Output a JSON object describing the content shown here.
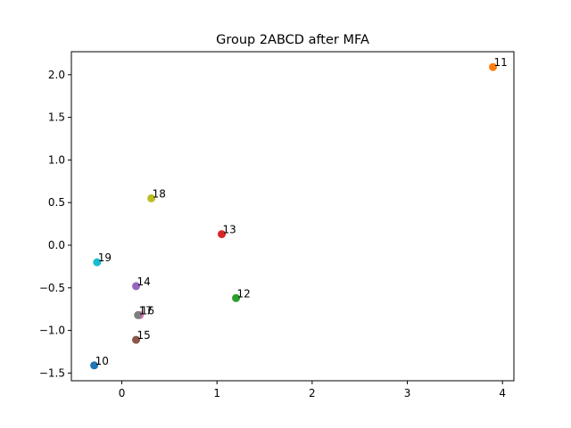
{
  "chart_data": {
    "type": "scatter",
    "title": "Group 2ABCD after MFA",
    "xlabel": "",
    "ylabel": "",
    "xlim": [
      -0.53,
      4.12
    ],
    "ylim": [
      -1.59,
      2.27
    ],
    "xticks": [
      0,
      1,
      2,
      3,
      4
    ],
    "yticks": [
      -1.5,
      -1.0,
      -0.5,
      0.0,
      0.5,
      1.0,
      1.5,
      2.0
    ],
    "xtick_labels": [
      "0",
      "1",
      "2",
      "3",
      "4"
    ],
    "ytick_labels": [
      "−1.5",
      "−1.0",
      "−0.5",
      "0.0",
      "0.5",
      "1.0",
      "1.5",
      "2.0"
    ],
    "grid": false,
    "points": [
      {
        "label": "10",
        "x": -0.29,
        "y": -1.41,
        "color": "#1f77b4"
      },
      {
        "label": "11",
        "x": 3.9,
        "y": 2.09,
        "color": "#ff7f0e"
      },
      {
        "label": "12",
        "x": 1.2,
        "y": -0.62,
        "color": "#2ca02c"
      },
      {
        "label": "13",
        "x": 1.05,
        "y": 0.13,
        "color": "#d62728"
      },
      {
        "label": "14",
        "x": 0.15,
        "y": -0.48,
        "color": "#9467bd"
      },
      {
        "label": "15",
        "x": 0.15,
        "y": -1.11,
        "color": "#8c564b"
      },
      {
        "label": "16",
        "x": 0.19,
        "y": -0.82,
        "color": "#e377c2"
      },
      {
        "label": "17",
        "x": 0.17,
        "y": -0.82,
        "color": "#7f7f7f"
      },
      {
        "label": "18",
        "x": 0.31,
        "y": 0.55,
        "color": "#bcbd22"
      },
      {
        "label": "19",
        "x": -0.26,
        "y": -0.2,
        "color": "#17becf"
      }
    ]
  }
}
